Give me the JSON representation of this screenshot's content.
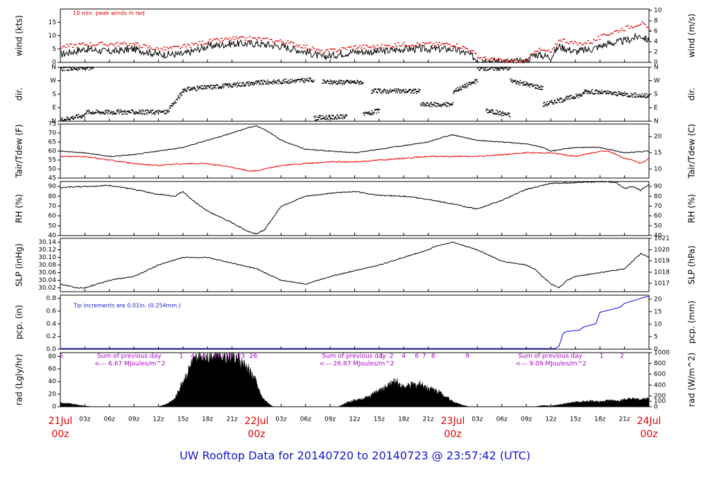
{
  "footer": "UW Rooftop Data for 20140720  to  20140723 @ 23:57:42  (UTC)",
  "colors": {
    "peak": "#dd0000",
    "dew": "#ee0000",
    "precip": "#0000dd",
    "annot_blue": "#1515c8",
    "radsum": "#aa00cc",
    "date": "#dd0000"
  },
  "time_axis": {
    "range_hours": [
      0,
      72
    ],
    "ticks": [
      {
        "h": 3,
        "label": "03z"
      },
      {
        "h": 6,
        "label": "06z"
      },
      {
        "h": 9,
        "label": "09z"
      },
      {
        "h": 12,
        "label": "12z"
      },
      {
        "h": 15,
        "label": "15z"
      },
      {
        "h": 18,
        "label": "18z"
      },
      {
        "h": 21,
        "label": "21z"
      },
      {
        "h": 27,
        "label": "03z"
      },
      {
        "h": 30,
        "label": "06z"
      },
      {
        "h": 33,
        "label": "09z"
      },
      {
        "h": 36,
        "label": "12z"
      },
      {
        "h": 39,
        "label": "15z"
      },
      {
        "h": 42,
        "label": "18z"
      },
      {
        "h": 45,
        "label": "21z"
      },
      {
        "h": 51,
        "label": "03z"
      },
      {
        "h": 54,
        "label": "06z"
      },
      {
        "h": 57,
        "label": "09z"
      },
      {
        "h": 60,
        "label": "12z"
      },
      {
        "h": 63,
        "label": "15z"
      },
      {
        "h": 66,
        "label": "18z"
      },
      {
        "h": 69,
        "label": "21z"
      }
    ],
    "days": [
      {
        "h": 0,
        "date": "21Jul",
        "hour": "00z"
      },
      {
        "h": 24,
        "date": "22Jul",
        "hour": "00z"
      },
      {
        "h": 48,
        "date": "23Jul",
        "hour": "00z"
      },
      {
        "h": 72,
        "date": "24Jul",
        "hour": "00z"
      }
    ]
  },
  "panels": {
    "wind": {
      "ylabel": "wind (kts)",
      "ylabel_right": "wind (m/s)",
      "annotation": "10 min. peak winds in red",
      "ylim": [
        0,
        20
      ],
      "ticks_left": [
        {
          "v": 0,
          "t": "0"
        },
        {
          "v": 5,
          "t": "5"
        },
        {
          "v": 10,
          "t": "10"
        },
        {
          "v": 15,
          "t": "15"
        }
      ],
      "ticks_right": [
        {
          "v": 0,
          "t": "0"
        },
        {
          "v": 3.89,
          "t": "2"
        },
        {
          "v": 7.78,
          "t": "4"
        },
        {
          "v": 11.66,
          "t": "6"
        },
        {
          "v": 15.55,
          "t": "8"
        },
        {
          "v": 19.44,
          "t": "10"
        }
      ]
    },
    "dir": {
      "ylabel": "dir.",
      "ylabel_right": "dir.",
      "ylim": [
        0,
        360
      ],
      "ticks_left": [
        {
          "v": 0,
          "t": "N"
        },
        {
          "v": 90,
          "t": "E"
        },
        {
          "v": 180,
          "t": "S"
        },
        {
          "v": 270,
          "t": "W"
        },
        {
          "v": 360,
          "t": "N"
        }
      ],
      "ticks_right": [
        {
          "v": 0,
          "t": "N"
        },
        {
          "v": 90,
          "t": "E"
        },
        {
          "v": 180,
          "t": "S"
        },
        {
          "v": 270,
          "t": "W"
        },
        {
          "v": 360,
          "t": "N"
        }
      ]
    },
    "temp": {
      "ylabel": "Tair/Tdew (F)",
      "ylabel_right": "Tair/Tdew (C)",
      "ylim": [
        45,
        75
      ],
      "ticks_left": [
        {
          "v": 45,
          "t": "45"
        },
        {
          "v": 50,
          "t": "50"
        },
        {
          "v": 55,
          "t": "55"
        },
        {
          "v": 60,
          "t": "60"
        },
        {
          "v": 65,
          "t": "65"
        },
        {
          "v": 70,
          "t": "70"
        },
        {
          "v": 75,
          "t": "75"
        }
      ],
      "ticks_right": [
        {
          "v": 50,
          "t": "10"
        },
        {
          "v": 59,
          "t": "15"
        },
        {
          "v": 68,
          "t": "20"
        }
      ]
    },
    "rh": {
      "ylabel": "RH (%)",
      "ylabel_right": "RH (%)",
      "ylim": [
        40,
        95
      ],
      "ticks_left": [
        {
          "v": 40,
          "t": "40"
        },
        {
          "v": 50,
          "t": "50"
        },
        {
          "v": 60,
          "t": "60"
        },
        {
          "v": 70,
          "t": "70"
        },
        {
          "v": 80,
          "t": "80"
        },
        {
          "v": 90,
          "t": "90"
        }
      ],
      "ticks_right": [
        {
          "v": 40,
          "t": "40"
        },
        {
          "v": 50,
          "t": "50"
        },
        {
          "v": 60,
          "t": "60"
        },
        {
          "v": 70,
          "t": "70"
        },
        {
          "v": 80,
          "t": "80"
        },
        {
          "v": 90,
          "t": "90"
        }
      ]
    },
    "slp": {
      "ylabel": "SLP (inHg)",
      "ylabel_right": "SLP (hPa)",
      "ylim": [
        30.01,
        30.15
      ],
      "ticks_left": [
        {
          "v": 30.02,
          "t": "30.02"
        },
        {
          "v": 30.04,
          "t": "30.04"
        },
        {
          "v": 30.06,
          "t": "30.06"
        },
        {
          "v": 30.08,
          "t": "30.08"
        },
        {
          "v": 30.1,
          "t": "30.10"
        },
        {
          "v": 30.12,
          "t": "30.12"
        },
        {
          "v": 30.14,
          "t": "30.14"
        }
      ],
      "ticks_right": [
        {
          "v": 30.032,
          "t": "1017"
        },
        {
          "v": 30.061,
          "t": "1018"
        },
        {
          "v": 30.091,
          "t": "1019"
        },
        {
          "v": 30.12,
          "t": "1020"
        },
        {
          "v": 30.15,
          "t": "1021"
        }
      ]
    },
    "pcp": {
      "ylabel": "pcp. (in)",
      "ylabel_right": "pcp. (mm)",
      "annotation": "Tip increments are 0.01in. (0.254mm.)",
      "ylim": [
        0,
        0.85
      ],
      "ticks_left": [
        {
          "v": 0,
          "t": "0.0"
        },
        {
          "v": 0.2,
          "t": "0.2"
        },
        {
          "v": 0.4,
          "t": "0.4"
        },
        {
          "v": 0.6,
          "t": "0.6"
        },
        {
          "v": 0.8,
          "t": "0.8"
        }
      ],
      "ticks_right": [
        {
          "v": 0,
          "t": "0"
        },
        {
          "v": 0.197,
          "t": "5"
        },
        {
          "v": 0.394,
          "t": "10"
        },
        {
          "v": 0.591,
          "t": "15"
        },
        {
          "v": 0.787,
          "t": "20"
        }
      ]
    },
    "rad": {
      "ylabel": "rad (Lgly/hr)",
      "ylabel_right": "rad (W/m^2)",
      "ylim": [
        0,
        86
      ],
      "ticks_left": [
        {
          "v": 0,
          "t": "0"
        },
        {
          "v": 20,
          "t": "20"
        },
        {
          "v": 40,
          "t": "40"
        },
        {
          "v": 60,
          "t": "60"
        },
        {
          "v": 80,
          "t": "80"
        }
      ],
      "ticks_right": [
        {
          "v": 0,
          "t": "0"
        },
        {
          "v": 8.6,
          "t": "100"
        },
        {
          "v": 17.2,
          "t": "200"
        },
        {
          "v": 34.4,
          "t": "400"
        },
        {
          "v": 51.6,
          "t": "600"
        },
        {
          "v": 68.8,
          "t": "800"
        },
        {
          "v": 86,
          "t": "1000"
        }
      ],
      "day_sums": [
        {
          "h": 4.5,
          "title": "Sum of previous day",
          "value": "<--- 6.67 MJoules/m^2"
        },
        {
          "h": 32,
          "title": "Sum of previous day",
          "value": "<--- 26.87 MJoules/m^2"
        },
        {
          "h": 56,
          "title": "Sum of previous day",
          "value": "<--- 9.09 MJoules/m^2"
        }
      ],
      "hour_markers": [
        {
          "h": 0.1,
          "t": "5"
        },
        {
          "h": 14.8,
          "t": "1"
        },
        {
          "h": 16.2,
          "t": "4"
        },
        {
          "h": 17.6,
          "t": "8"
        },
        {
          "h": 19.2,
          "t": "10"
        },
        {
          "h": 20.6,
          "t": "18"
        },
        {
          "h": 22.1,
          "t": "23"
        },
        {
          "h": 23.6,
          "t": "26"
        },
        {
          "h": 39.3,
          "t": "1"
        },
        {
          "h": 40.5,
          "t": "2"
        },
        {
          "h": 42.0,
          "t": "4"
        },
        {
          "h": 43.6,
          "t": "6"
        },
        {
          "h": 44.5,
          "t": "7"
        },
        {
          "h": 45.6,
          "t": "8"
        },
        {
          "h": 49.8,
          "t": "9"
        },
        {
          "h": 66.2,
          "t": "1"
        },
        {
          "h": 68.7,
          "t": "2"
        }
      ]
    }
  },
  "chart_data": {
    "type": "line",
    "x_unit": "hours since 21Jul 00z (UTC)",
    "wind_kts": {
      "x": [
        0,
        3,
        6,
        9,
        12,
        15,
        18,
        21,
        24,
        27,
        30,
        32,
        34,
        36,
        39,
        42,
        45,
        48,
        50,
        51,
        53,
        55,
        57,
        58,
        60,
        61,
        63,
        65,
        67,
        69,
        70,
        71,
        72
      ],
      "values": [
        3,
        5,
        4,
        5,
        3,
        3,
        6,
        7,
        7,
        6,
        4,
        2,
        3,
        4,
        4,
        5,
        5,
        5,
        3,
        1,
        0.5,
        0.3,
        0.3,
        3,
        2,
        6,
        4,
        5,
        7,
        8,
        9,
        10,
        8
      ]
    },
    "peak_wind_kts": {
      "x": [
        0,
        3,
        6,
        9,
        12,
        15,
        18,
        21,
        24,
        27,
        30,
        32,
        34,
        36,
        39,
        42,
        45,
        48,
        50,
        51,
        53,
        55,
        57,
        58,
        60,
        61,
        63,
        65,
        67,
        69,
        70,
        71,
        72
      ],
      "values": [
        6,
        7,
        7,
        7,
        5,
        6,
        8,
        9,
        9,
        8,
        6,
        4,
        5,
        6,
        6,
        7,
        7,
        7,
        5,
        2,
        1,
        0.5,
        0.5,
        5,
        4,
        9,
        7,
        8,
        11,
        13,
        14,
        15,
        12
      ]
    },
    "dir_deg": {
      "segments": [
        {
          "h0": 0,
          "h1": 4,
          "d0": 350,
          "d1": 355
        },
        {
          "h0": 0,
          "h1": 3,
          "d0": 10,
          "d1": 40
        },
        {
          "h0": 3,
          "h1": 13,
          "d0": 60,
          "d1": 60
        },
        {
          "h0": 13,
          "h1": 15,
          "d0": 60,
          "d1": 200
        },
        {
          "h0": 15,
          "h1": 24,
          "d0": 210,
          "d1": 255
        },
        {
          "h0": 24,
          "h1": 31,
          "d0": 255,
          "d1": 275
        },
        {
          "h0": 31,
          "h1": 35,
          "d0": 20,
          "d1": 30
        },
        {
          "h0": 32,
          "h1": 37,
          "d0": 260,
          "d1": 260
        },
        {
          "h0": 37,
          "h1": 39,
          "d0": 40,
          "d1": 70
        },
        {
          "h0": 38,
          "h1": 44,
          "d0": 200,
          "d1": 200
        },
        {
          "h0": 44,
          "h1": 48,
          "d0": 110,
          "d1": 110
        },
        {
          "h0": 48,
          "h1": 51,
          "d0": 200,
          "d1": 270
        },
        {
          "h0": 51,
          "h1": 55,
          "d0": 350,
          "d1": 355
        },
        {
          "h0": 52,
          "h1": 55,
          "d0": 70,
          "d1": 40
        },
        {
          "h0": 55,
          "h1": 59,
          "d0": 270,
          "d1": 220
        },
        {
          "h0": 59,
          "h1": 64,
          "d0": 110,
          "d1": 180
        },
        {
          "h0": 64,
          "h1": 72,
          "d0": 200,
          "d1": 165
        }
      ]
    },
    "tair_f": {
      "x": [
        0,
        3,
        6,
        9,
        12,
        15,
        18,
        21,
        23,
        24,
        25,
        27,
        30,
        33,
        36,
        39,
        42,
        45,
        47,
        48,
        51,
        54,
        57,
        59,
        60,
        63,
        66,
        69,
        72
      ],
      "values": [
        60,
        59,
        57,
        58,
        60,
        62,
        66,
        70,
        73,
        74,
        72,
        66,
        61,
        60,
        59,
        61,
        63,
        65,
        68,
        69,
        66,
        65,
        64,
        62,
        60,
        62,
        62,
        59,
        60
      ]
    },
    "tdew_f": {
      "x": [
        0,
        3,
        6,
        9,
        12,
        15,
        18,
        21,
        23,
        24,
        25,
        27,
        30,
        33,
        36,
        39,
        42,
        45,
        48,
        51,
        54,
        57,
        60,
        63,
        66,
        67,
        69,
        70,
        71,
        72
      ],
      "values": [
        57,
        57,
        55,
        53,
        52,
        53,
        53,
        51,
        49,
        49,
        50,
        52,
        53,
        54,
        54,
        55,
        56,
        57,
        57,
        57,
        58,
        59,
        59,
        57,
        60,
        60,
        56,
        55,
        53,
        56
      ]
    },
    "rh_pct": {
      "x": [
        0,
        3,
        6,
        9,
        12,
        14,
        15,
        16,
        18,
        21,
        23,
        24,
        25,
        27,
        30,
        33,
        36,
        39,
        42,
        45,
        48,
        51,
        54,
        57,
        60,
        63,
        66,
        68,
        69,
        70,
        71,
        72
      ],
      "values": [
        89,
        90,
        91,
        87,
        82,
        80,
        85,
        77,
        65,
        53,
        44,
        42,
        46,
        70,
        80,
        83,
        85,
        81,
        80,
        77,
        72,
        67,
        76,
        87,
        93,
        94,
        95,
        94,
        88,
        90,
        86,
        92
      ]
    },
    "slp_inhg": {
      "x": [
        0,
        2,
        3,
        6,
        9,
        12,
        15,
        18,
        20,
        24,
        27,
        30,
        33,
        36,
        39,
        42,
        45,
        46,
        48,
        51,
        54,
        57,
        58,
        59,
        60,
        61,
        62,
        63,
        66,
        69,
        70,
        71,
        72
      ],
      "values": [
        30.03,
        30.02,
        30.02,
        30.04,
        30.05,
        30.08,
        30.1,
        30.1,
        30.09,
        30.07,
        30.04,
        30.03,
        30.05,
        30.065,
        30.08,
        30.1,
        30.12,
        30.13,
        30.14,
        30.12,
        30.09,
        30.08,
        30.07,
        30.05,
        30.03,
        30.02,
        30.04,
        30.05,
        30.06,
        30.07,
        30.09,
        30.11,
        30.1
      ]
    },
    "pcp_in": {
      "x": [
        0,
        60.5,
        61,
        61.5,
        62,
        63.5,
        64,
        65.5,
        66,
        68.5,
        69,
        71.5,
        72
      ],
      "values": [
        0.01,
        0.01,
        0.05,
        0.25,
        0.28,
        0.3,
        0.35,
        0.4,
        0.58,
        0.66,
        0.72,
        0.82,
        0.83
      ]
    },
    "rad_lgly_hr": {
      "x": [
        0,
        1,
        2,
        3,
        4,
        5,
        12,
        13,
        14,
        15,
        16,
        17,
        18,
        19,
        20,
        21,
        22,
        23,
        24,
        24.5,
        25,
        25.5,
        26,
        34,
        35,
        36,
        37,
        38,
        39,
        40,
        41,
        42,
        43,
        44,
        45,
        46,
        47,
        48,
        49,
        50,
        58,
        59,
        60,
        61,
        62,
        63,
        64,
        65,
        66,
        67,
        68,
        69,
        70,
        71,
        72
      ],
      "values": [
        6,
        5,
        3,
        1,
        0,
        0,
        0,
        4,
        12,
        40,
        65,
        78,
        82,
        84,
        84,
        80,
        70,
        58,
        38,
        18,
        10,
        5,
        0,
        0,
        6,
        10,
        12,
        18,
        25,
        32,
        40,
        30,
        34,
        35,
        30,
        25,
        18,
        8,
        3,
        0,
        0,
        2,
        1,
        3,
        5,
        7,
        8,
        9,
        8,
        10,
        9,
        11,
        12,
        11,
        13
      ]
    }
  }
}
